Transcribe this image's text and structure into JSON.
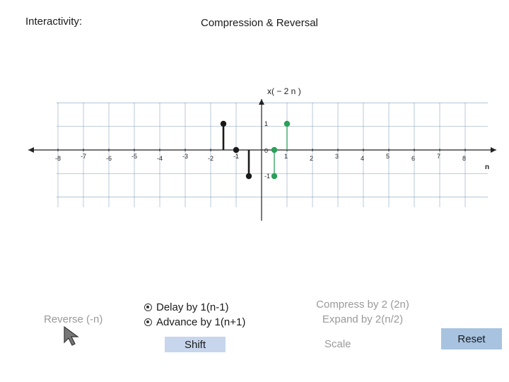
{
  "header": {
    "interactivity_label": "Interactivity:",
    "title": "Compression & Reversal"
  },
  "chart_data": {
    "type": "scatter",
    "title": "x( − 2 n )",
    "xlabel": "n",
    "ylabel": "",
    "xlim": [
      -8,
      8
    ],
    "ylim": [
      -1,
      1
    ],
    "x_ticks": [
      "-8",
      "-7",
      "-6",
      "-5",
      "-4",
      "-3",
      "-2",
      "-1",
      "0",
      "1",
      "2",
      "3",
      "4",
      "5",
      "6",
      "7",
      "8"
    ],
    "y_ticks": [
      "1",
      "0",
      "-1"
    ],
    "series": [
      {
        "color": "#1a1a1a",
        "points": [
          [
            -1.5,
            1
          ],
          [
            -1,
            0
          ],
          [
            -0.5,
            -1
          ]
        ]
      },
      {
        "color": "#2aa05a",
        "points": [
          [
            0.5,
            0
          ],
          [
            1,
            1
          ],
          [
            0.5,
            -1
          ]
        ]
      }
    ],
    "grid": true
  },
  "controls": {
    "reverse_label": "Reverse (-n)",
    "delay_label": "Delay by 1(n-1)",
    "advance_label": "Advance by 1(n+1)",
    "shift_label": "Shift",
    "compress_label": "Compress by 2 (2n)",
    "expand_label": "Expand by 2(n/2)",
    "scale_label": "Scale",
    "reset_label": "Reset"
  },
  "colors": {
    "accent_shift": "#c7d6ec",
    "accent_reset": "#a7c3e0",
    "disabled_text": "#9a9a9a",
    "grid": "#5b7fa6",
    "stem_green": "#2aa05a"
  },
  "icons": {
    "cursor": "arrow-pointer-icon"
  }
}
